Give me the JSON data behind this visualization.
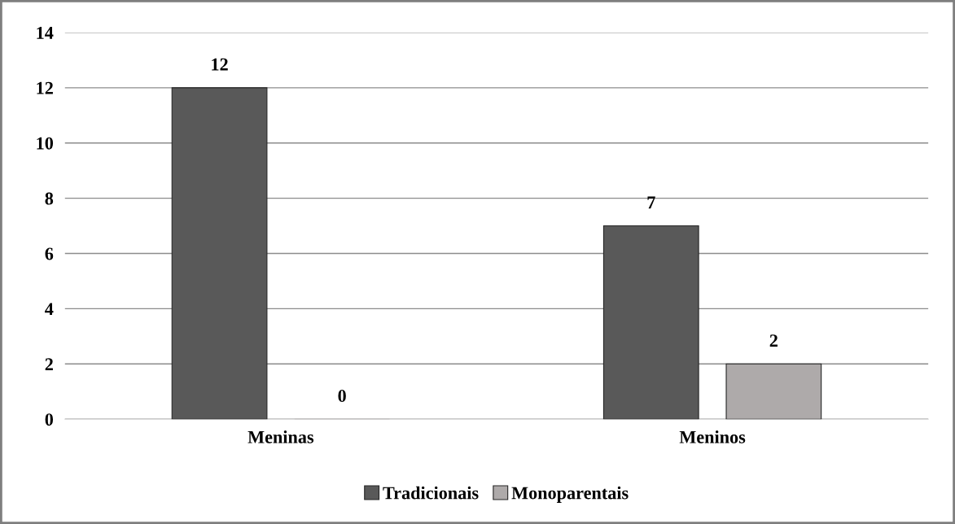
{
  "chart_data": {
    "type": "bar",
    "categories": [
      "Meninas",
      "Meninos"
    ],
    "series": [
      {
        "name": "Tradicionais",
        "color": "#595959",
        "values": [
          12,
          7
        ]
      },
      {
        "name": "Monoparentais",
        "color": "#aeaaaa",
        "values": [
          0,
          2
        ]
      }
    ],
    "ylim": [
      0,
      14
    ],
    "yticks": [
      0,
      2,
      4,
      6,
      8,
      10,
      12,
      14
    ],
    "grid": "y",
    "legend": "bottom",
    "data_labels": true
  }
}
